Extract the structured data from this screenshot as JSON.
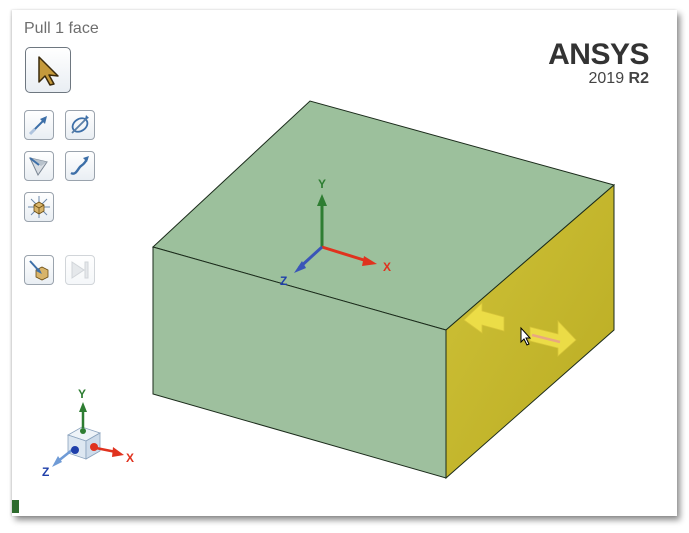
{
  "viewport": {
    "mode_label": "Pull 1 face"
  },
  "brand": {
    "name": "ANSYS",
    "version_year": "2019",
    "version_release": "R2"
  },
  "toolbar": {
    "tools": [
      {
        "name": "select-tool",
        "icon": "select-arrow-icon",
        "state": "active"
      },
      {
        "name": "direction-tool",
        "icon": "up-to-arrow-icon"
      },
      {
        "name": "pivot-tool",
        "icon": "revolve-icon"
      },
      {
        "name": "ruler-tool",
        "icon": "angle-icon"
      },
      {
        "name": "sweep-tool",
        "icon": "sweep-path-icon"
      },
      {
        "name": "scale-body-tool",
        "icon": "scale-body-icon"
      },
      {
        "name": "complete-tool",
        "icon": "complete-icon"
      },
      {
        "name": "full-pull-tool",
        "icon": "full-pull-icon",
        "state": "disabled"
      }
    ]
  },
  "scene": {
    "origin_triad": {
      "x": "X",
      "y": "Y",
      "z": "Z"
    },
    "corner_triad": {
      "x": "X",
      "y": "Y",
      "z": "Z"
    },
    "colors": {
      "body_face": "#9dc09d",
      "selected_face": "#c9bd32",
      "x_axis": "#e0321e",
      "y_axis": "#2e7d32",
      "z_axis": "#1f3faa",
      "pull_arrow": "#f2e24a"
    }
  }
}
